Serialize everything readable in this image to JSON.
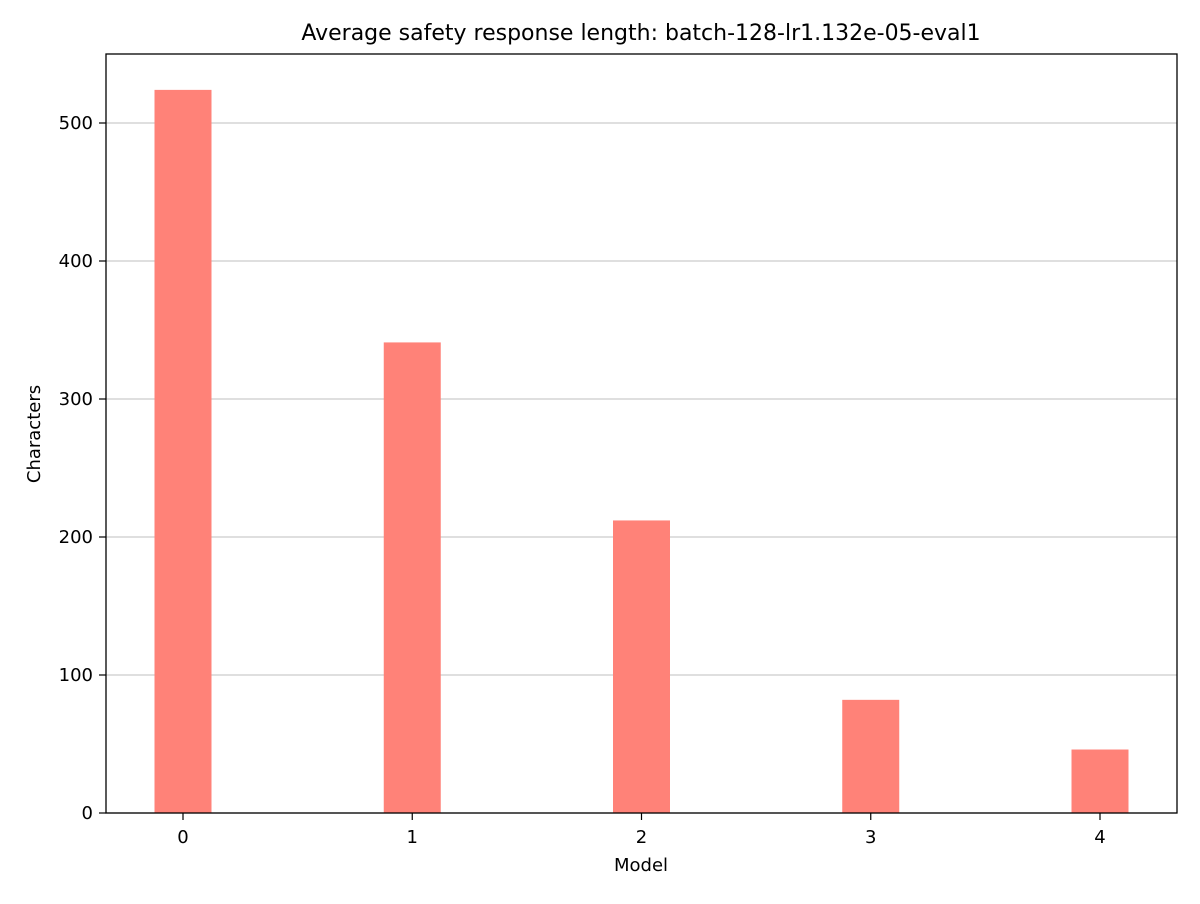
{
  "chart_data": {
    "type": "bar",
    "title": "Average safety response length: batch-128-lr1.132e-05-eval1",
    "xlabel": "Model",
    "ylabel": "Characters",
    "categories": [
      "0",
      "1",
      "2",
      "3",
      "4"
    ],
    "values": [
      524,
      341,
      212,
      82,
      46
    ],
    "ylim": [
      0,
      550
    ],
    "yticks": [
      0,
      100,
      200,
      300,
      400,
      500
    ],
    "bar_color": "#ff8278",
    "grid": "horizontal",
    "legend": "none"
  }
}
